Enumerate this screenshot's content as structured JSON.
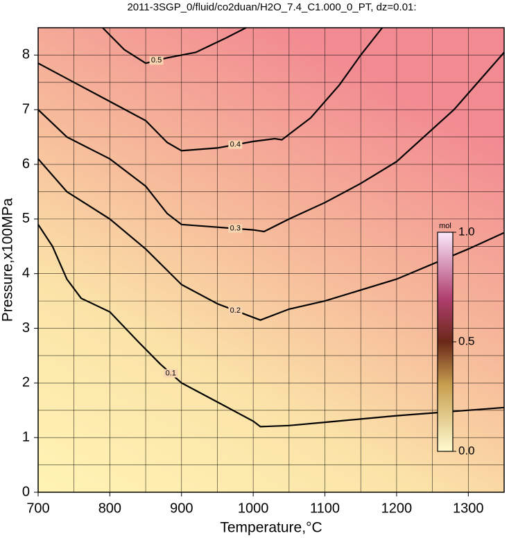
{
  "chart_data": {
    "type": "contour",
    "title": "2011-3SGP_0/fluid/co2duan/H2O_7.4_C1.000_0_PT, dz=0.01:",
    "x_label": "Temperature,°C",
    "y_label": "Pressure,x100MPa",
    "xlim": [
      700,
      1350
    ],
    "ylim": [
      0,
      8.5
    ],
    "xticks": [
      700,
      800,
      900,
      1000,
      1100,
      1200,
      1300
    ],
    "yticks": [
      0,
      1,
      2,
      3,
      4,
      5,
      6,
      7,
      8
    ],
    "x_minor_ticks": [
      750,
      850,
      950,
      1050,
      1150,
      1250
    ],
    "y_minor_ticks": [
      0.5,
      1.5,
      2.5,
      3.5,
      4.5,
      5.5,
      6.5,
      7.5
    ],
    "grid": true,
    "contours": [
      {
        "level": 0.1,
        "x": [
          700,
          720,
          740,
          760,
          800,
          840,
          870,
          900,
          950,
          1000,
          1010,
          1050,
          1100,
          1200,
          1350
        ],
        "y": [
          4.9,
          4.5,
          3.9,
          3.55,
          3.3,
          2.75,
          2.35,
          2.0,
          1.65,
          1.3,
          1.2,
          1.22,
          1.28,
          1.4,
          1.55
        ]
      },
      {
        "level": 0.2,
        "x": [
          700,
          740,
          800,
          850,
          900,
          950,
          1000,
          1010,
          1050,
          1100,
          1200,
          1300,
          1350
        ],
        "y": [
          6.1,
          5.5,
          5.0,
          4.45,
          3.8,
          3.45,
          3.2,
          3.15,
          3.35,
          3.5,
          3.9,
          4.45,
          4.75
        ]
      },
      {
        "level": 0.3,
        "x": [
          700,
          740,
          800,
          850,
          880,
          900,
          950,
          1000,
          1015,
          1050,
          1100,
          1150,
          1200,
          1280,
          1350
        ],
        "y": [
          7.0,
          6.5,
          6.1,
          5.6,
          5.1,
          4.9,
          4.85,
          4.8,
          4.77,
          5.0,
          5.3,
          5.65,
          6.05,
          7.0,
          8.05
        ]
      },
      {
        "level": 0.4,
        "x": [
          700,
          750,
          800,
          850,
          880,
          900,
          950,
          1000,
          1030,
          1040,
          1080,
          1120,
          1150,
          1180
        ],
        "y": [
          7.85,
          7.5,
          7.15,
          6.8,
          6.4,
          6.25,
          6.3,
          6.42,
          6.47,
          6.45,
          6.85,
          7.45,
          8.0,
          8.5
        ]
      },
      {
        "level": 0.5,
        "x": [
          790,
          820,
          850,
          880,
          920,
          960,
          990
        ],
        "y": [
          8.5,
          8.1,
          7.85,
          7.95,
          8.05,
          8.3,
          8.5
        ]
      }
    ],
    "colorbar": {
      "unit": "mol",
      "lim": [
        0,
        1
      ],
      "ticks": [
        {
          "value": 0,
          "label": "0.0"
        },
        {
          "value": 0.5,
          "label": "0.5"
        },
        {
          "value": 1,
          "label": "1.0"
        }
      ]
    }
  }
}
